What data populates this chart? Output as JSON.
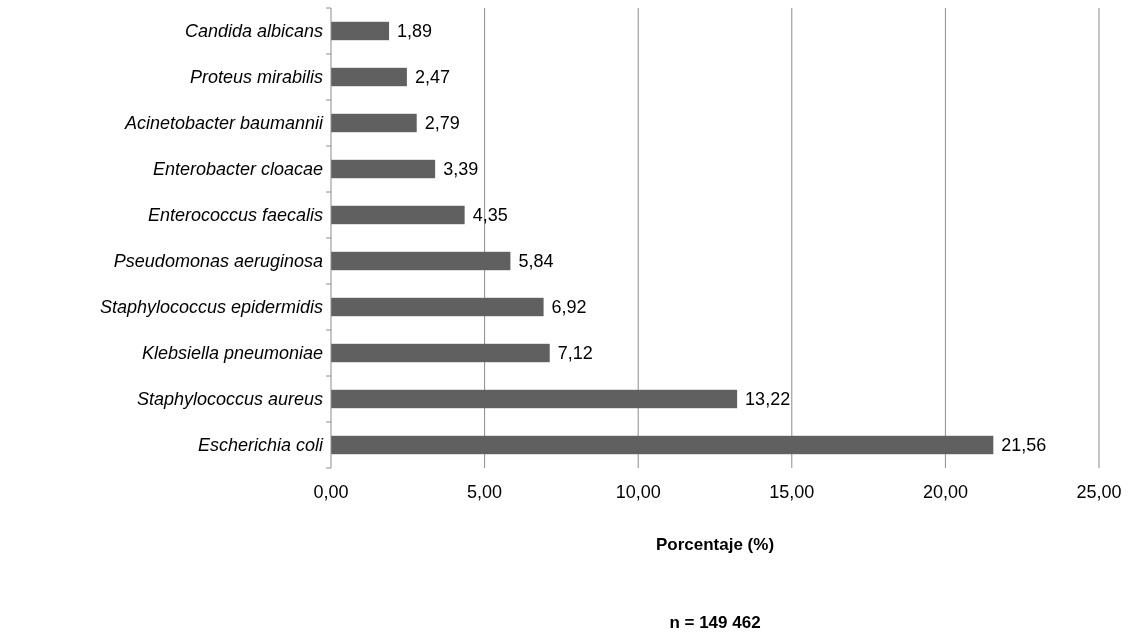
{
  "chart_data": {
    "type": "bar",
    "orientation": "horizontal",
    "categories": [
      "Candida albicans",
      "Proteus mirabilis",
      "Acinetobacter baumannii",
      "Enterobacter cloacae",
      "Enterococcus faecalis",
      "Pseudomonas aeruginosa",
      "Staphylococcus epidermidis",
      "Klebsiella pneumoniae",
      "Staphylococcus aureus",
      "Escherichia coli"
    ],
    "values": [
      1.89,
      2.47,
      2.79,
      3.39,
      4.35,
      5.84,
      6.92,
      7.12,
      13.22,
      21.56
    ],
    "value_labels": [
      "1,89",
      "2,47",
      "2,79",
      "3,39",
      "4,35",
      "5,84",
      "6,92",
      "7,12",
      "13,22",
      "21,56"
    ],
    "color": "#606060",
    "xlim": [
      0,
      25
    ],
    "xticks": [
      {
        "value": 0,
        "label": "0,00"
      },
      {
        "value": 5,
        "label": "5,00"
      },
      {
        "value": 10,
        "label": "10,00"
      },
      {
        "value": 15,
        "label": "15,00"
      },
      {
        "value": 20,
        "label": "20,00"
      },
      {
        "value": 25,
        "label": "25,00"
      }
    ],
    "grid": "x",
    "xlabel": "Porcentaje (%)",
    "annotations": [
      "n = 149 462"
    ]
  }
}
